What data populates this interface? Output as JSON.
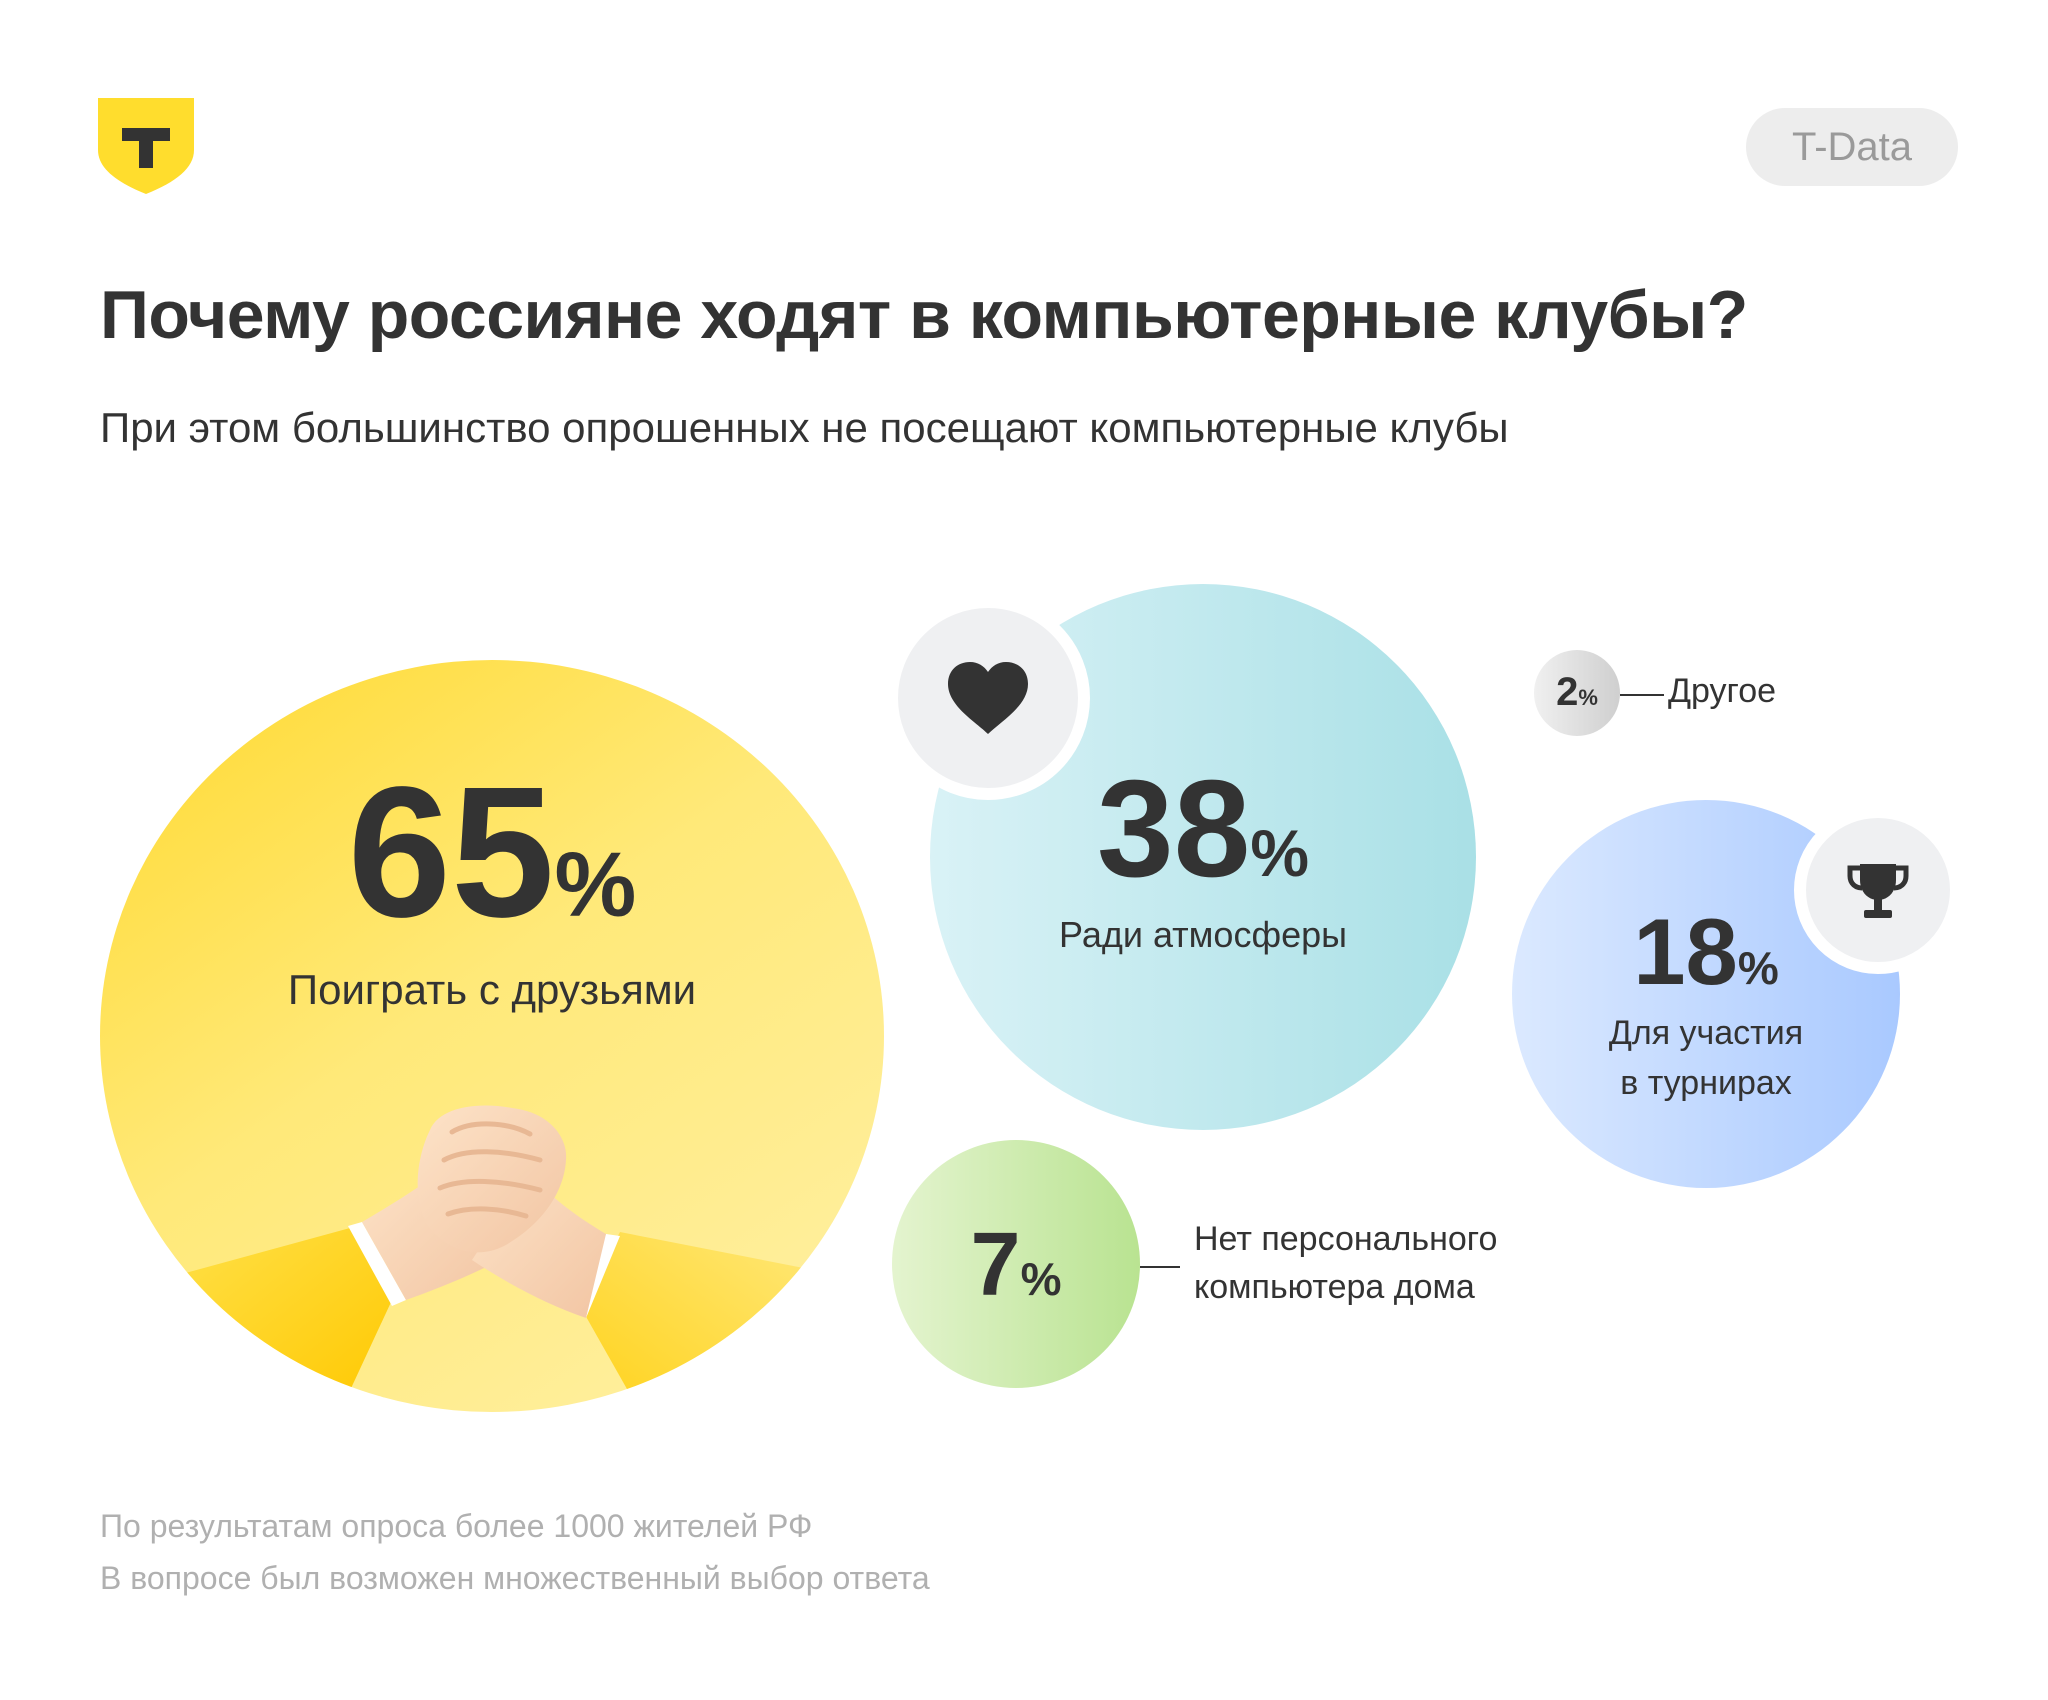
{
  "brand": {
    "logo_letter": "T",
    "badge": "T-Data"
  },
  "chart_data": {
    "type": "bubble",
    "title": "Почему россияне ходят в компьютерные клубы?",
    "subtitle": "При этом большинство опрошенных не посещают компьютерные клубы",
    "unit": "%",
    "categories": [
      "Поиграть с друзьями",
      "Ради атмосферы",
      "Для участия в турнирах",
      "Нет персонального компьютера дома",
      "Другое"
    ],
    "values": [
      65,
      38,
      18,
      7,
      2
    ],
    "items": [
      {
        "value": "65",
        "label": "Поиграть с друзьями",
        "color": "#ffe066"
      },
      {
        "value": "38",
        "label": "Ради атмосферы",
        "color": "#b8e6ea",
        "icon": "heart-icon"
      },
      {
        "value": "18",
        "label_line1": "Для участия",
        "label_line2": "в турнирах",
        "color": "#bdd7ff",
        "icon": "trophy-icon"
      },
      {
        "value": "7",
        "label_line1": "Нет персонального",
        "label_line2": "компьютера дома",
        "color": "#cdeaa8"
      },
      {
        "value": "2",
        "label": "Другое",
        "color": "#dedede"
      }
    ],
    "percent_sign": "%"
  },
  "notes": {
    "line1": "По результатам опроса более 1000 жителей РФ",
    "line2": "В вопросе был возможен множественный выбор ответа"
  }
}
